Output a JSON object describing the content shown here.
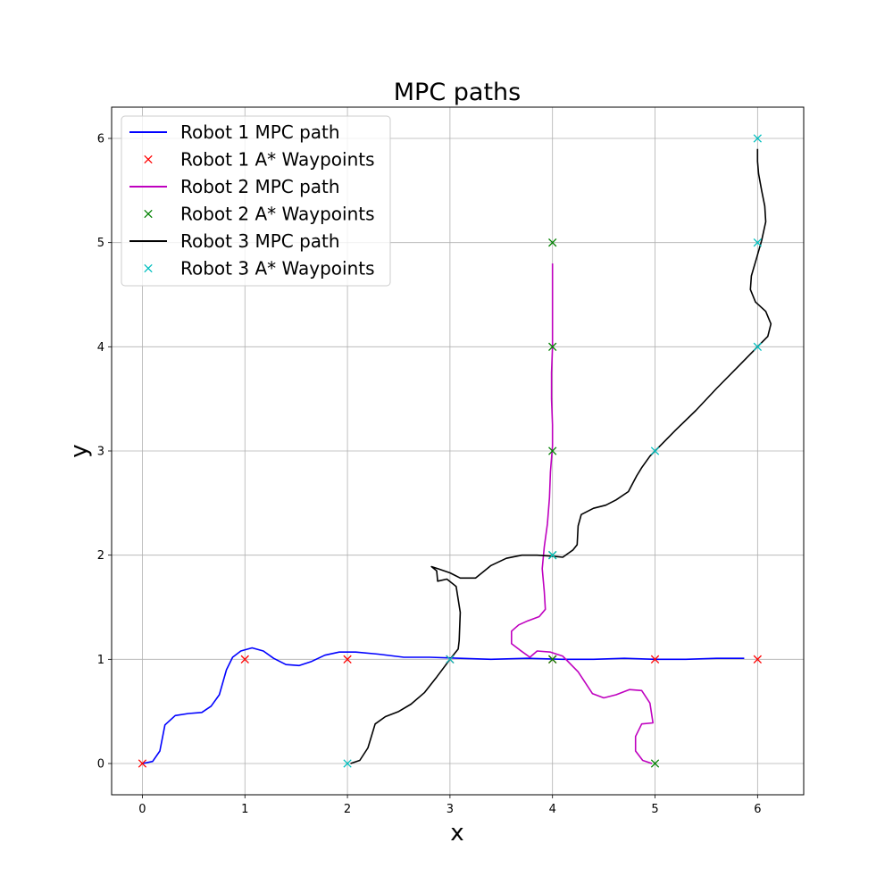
{
  "chart_data": {
    "type": "line",
    "title": "MPC paths",
    "xlabel": "x",
    "ylabel": "y",
    "xlim": [
      -0.3,
      6.45
    ],
    "ylim": [
      -0.3,
      6.3
    ],
    "xticks": [
      0,
      1,
      2,
      3,
      4,
      5,
      6
    ],
    "yticks": [
      0,
      1,
      2,
      3,
      4,
      5,
      6
    ],
    "grid": true,
    "legend_position": "upper-left",
    "series": [
      {
        "name": "Robot 1 MPC path",
        "kind": "line",
        "color": "#0000ff",
        "points": [
          [
            0.0,
            0.0
          ],
          [
            0.1,
            0.02
          ],
          [
            0.17,
            0.12
          ],
          [
            0.22,
            0.37
          ],
          [
            0.32,
            0.46
          ],
          [
            0.45,
            0.48
          ],
          [
            0.58,
            0.49
          ],
          [
            0.67,
            0.55
          ],
          [
            0.75,
            0.66
          ],
          [
            0.82,
            0.9
          ],
          [
            0.88,
            1.02
          ],
          [
            0.96,
            1.08
          ],
          [
            1.07,
            1.11
          ],
          [
            1.18,
            1.08
          ],
          [
            1.28,
            1.01
          ],
          [
            1.4,
            0.95
          ],
          [
            1.53,
            0.94
          ],
          [
            1.65,
            0.98
          ],
          [
            1.78,
            1.04
          ],
          [
            1.92,
            1.07
          ],
          [
            2.08,
            1.07
          ],
          [
            2.3,
            1.05
          ],
          [
            2.55,
            1.02
          ],
          [
            2.8,
            1.02
          ],
          [
            3.1,
            1.01
          ],
          [
            3.4,
            1.0
          ],
          [
            3.75,
            1.01
          ],
          [
            4.1,
            1.0
          ],
          [
            4.4,
            1.0
          ],
          [
            4.7,
            1.01
          ],
          [
            5.0,
            1.0
          ],
          [
            5.3,
            1.0
          ],
          [
            5.6,
            1.01
          ],
          [
            5.87,
            1.01
          ]
        ]
      },
      {
        "name": "Robot 1 A* Waypoints",
        "kind": "markers",
        "color": "#ff0000",
        "points": [
          [
            0,
            0
          ],
          [
            1,
            1
          ],
          [
            2,
            1
          ],
          [
            3,
            1
          ],
          [
            4,
            1
          ],
          [
            5,
            1
          ],
          [
            6,
            1
          ]
        ]
      },
      {
        "name": "Robot 2 MPC path",
        "kind": "line",
        "color": "#bf00bf",
        "points": [
          [
            4.97,
            0.0
          ],
          [
            4.88,
            0.03
          ],
          [
            4.81,
            0.12
          ],
          [
            4.81,
            0.26
          ],
          [
            4.87,
            0.38
          ],
          [
            4.98,
            0.39
          ],
          [
            4.95,
            0.58
          ],
          [
            4.87,
            0.7
          ],
          [
            4.75,
            0.71
          ],
          [
            4.62,
            0.66
          ],
          [
            4.5,
            0.63
          ],
          [
            4.39,
            0.67
          ],
          [
            4.25,
            0.88
          ],
          [
            4.1,
            1.03
          ],
          [
            3.98,
            1.07
          ],
          [
            3.85,
            1.08
          ],
          [
            3.78,
            1.02
          ],
          [
            3.68,
            1.09
          ],
          [
            3.6,
            1.15
          ],
          [
            3.6,
            1.27
          ],
          [
            3.67,
            1.33
          ],
          [
            3.76,
            1.37
          ],
          [
            3.87,
            1.41
          ],
          [
            3.93,
            1.48
          ],
          [
            3.92,
            1.65
          ],
          [
            3.9,
            1.87
          ],
          [
            3.92,
            2.08
          ],
          [
            3.95,
            2.3
          ],
          [
            3.97,
            2.55
          ],
          [
            3.98,
            2.8
          ],
          [
            4.0,
            3.05
          ],
          [
            4.0,
            3.25
          ],
          [
            3.99,
            3.5
          ],
          [
            3.99,
            3.75
          ],
          [
            4.0,
            4.0
          ],
          [
            4.0,
            4.25
          ],
          [
            4.0,
            4.5
          ],
          [
            4.0,
            4.8
          ]
        ]
      },
      {
        "name": "Robot 2 A* Waypoints",
        "kind": "markers",
        "color": "#008000",
        "points": [
          [
            5,
            0
          ],
          [
            4,
            1
          ],
          [
            4,
            2
          ],
          [
            4,
            3
          ],
          [
            4,
            4
          ],
          [
            4,
            5
          ]
        ]
      },
      {
        "name": "Robot 3 MPC path",
        "kind": "line",
        "color": "#000000",
        "points": [
          [
            2.03,
            0.0
          ],
          [
            2.12,
            0.03
          ],
          [
            2.2,
            0.15
          ],
          [
            2.27,
            0.38
          ],
          [
            2.37,
            0.45
          ],
          [
            2.5,
            0.5
          ],
          [
            2.62,
            0.57
          ],
          [
            2.75,
            0.68
          ],
          [
            2.87,
            0.83
          ],
          [
            3.0,
            1.0
          ],
          [
            3.08,
            1.1
          ],
          [
            3.09,
            1.18
          ],
          [
            3.1,
            1.45
          ],
          [
            3.06,
            1.7
          ],
          [
            2.97,
            1.77
          ],
          [
            2.88,
            1.75
          ],
          [
            2.87,
            1.85
          ],
          [
            2.82,
            1.89
          ],
          [
            2.88,
            1.87
          ],
          [
            3.0,
            1.83
          ],
          [
            3.1,
            1.78
          ],
          [
            3.25,
            1.78
          ],
          [
            3.4,
            1.9
          ],
          [
            3.55,
            1.97
          ],
          [
            3.7,
            2.0
          ],
          [
            3.85,
            2.0
          ],
          [
            4.0,
            1.99
          ],
          [
            4.1,
            1.98
          ],
          [
            4.2,
            2.05
          ],
          [
            4.24,
            2.1
          ],
          [
            4.25,
            2.28
          ],
          [
            4.28,
            2.39
          ],
          [
            4.4,
            2.45
          ],
          [
            4.52,
            2.48
          ],
          [
            4.62,
            2.53
          ],
          [
            4.74,
            2.61
          ],
          [
            4.82,
            2.76
          ],
          [
            4.87,
            2.84
          ],
          [
            4.95,
            2.95
          ],
          [
            5.05,
            3.05
          ],
          [
            5.2,
            3.2
          ],
          [
            5.4,
            3.39
          ],
          [
            5.6,
            3.6
          ],
          [
            5.8,
            3.8
          ],
          [
            6.0,
            4.0
          ],
          [
            6.1,
            4.1
          ],
          [
            6.13,
            4.22
          ],
          [
            6.08,
            4.34
          ],
          [
            5.98,
            4.43
          ],
          [
            5.93,
            4.55
          ],
          [
            5.94,
            4.68
          ],
          [
            5.99,
            4.85
          ],
          [
            6.04,
            5.02
          ],
          [
            6.08,
            5.2
          ],
          [
            6.07,
            5.35
          ],
          [
            6.04,
            5.5
          ],
          [
            6.01,
            5.66
          ],
          [
            6.0,
            5.78
          ],
          [
            6.0,
            5.9
          ]
        ]
      },
      {
        "name": "Robot 3 A* Waypoints",
        "kind": "markers",
        "color": "#00bfbf",
        "points": [
          [
            2,
            0
          ],
          [
            3,
            1
          ],
          [
            4,
            2
          ],
          [
            5,
            3
          ],
          [
            6,
            4
          ],
          [
            6,
            5
          ],
          [
            6,
            6
          ]
        ]
      }
    ]
  }
}
